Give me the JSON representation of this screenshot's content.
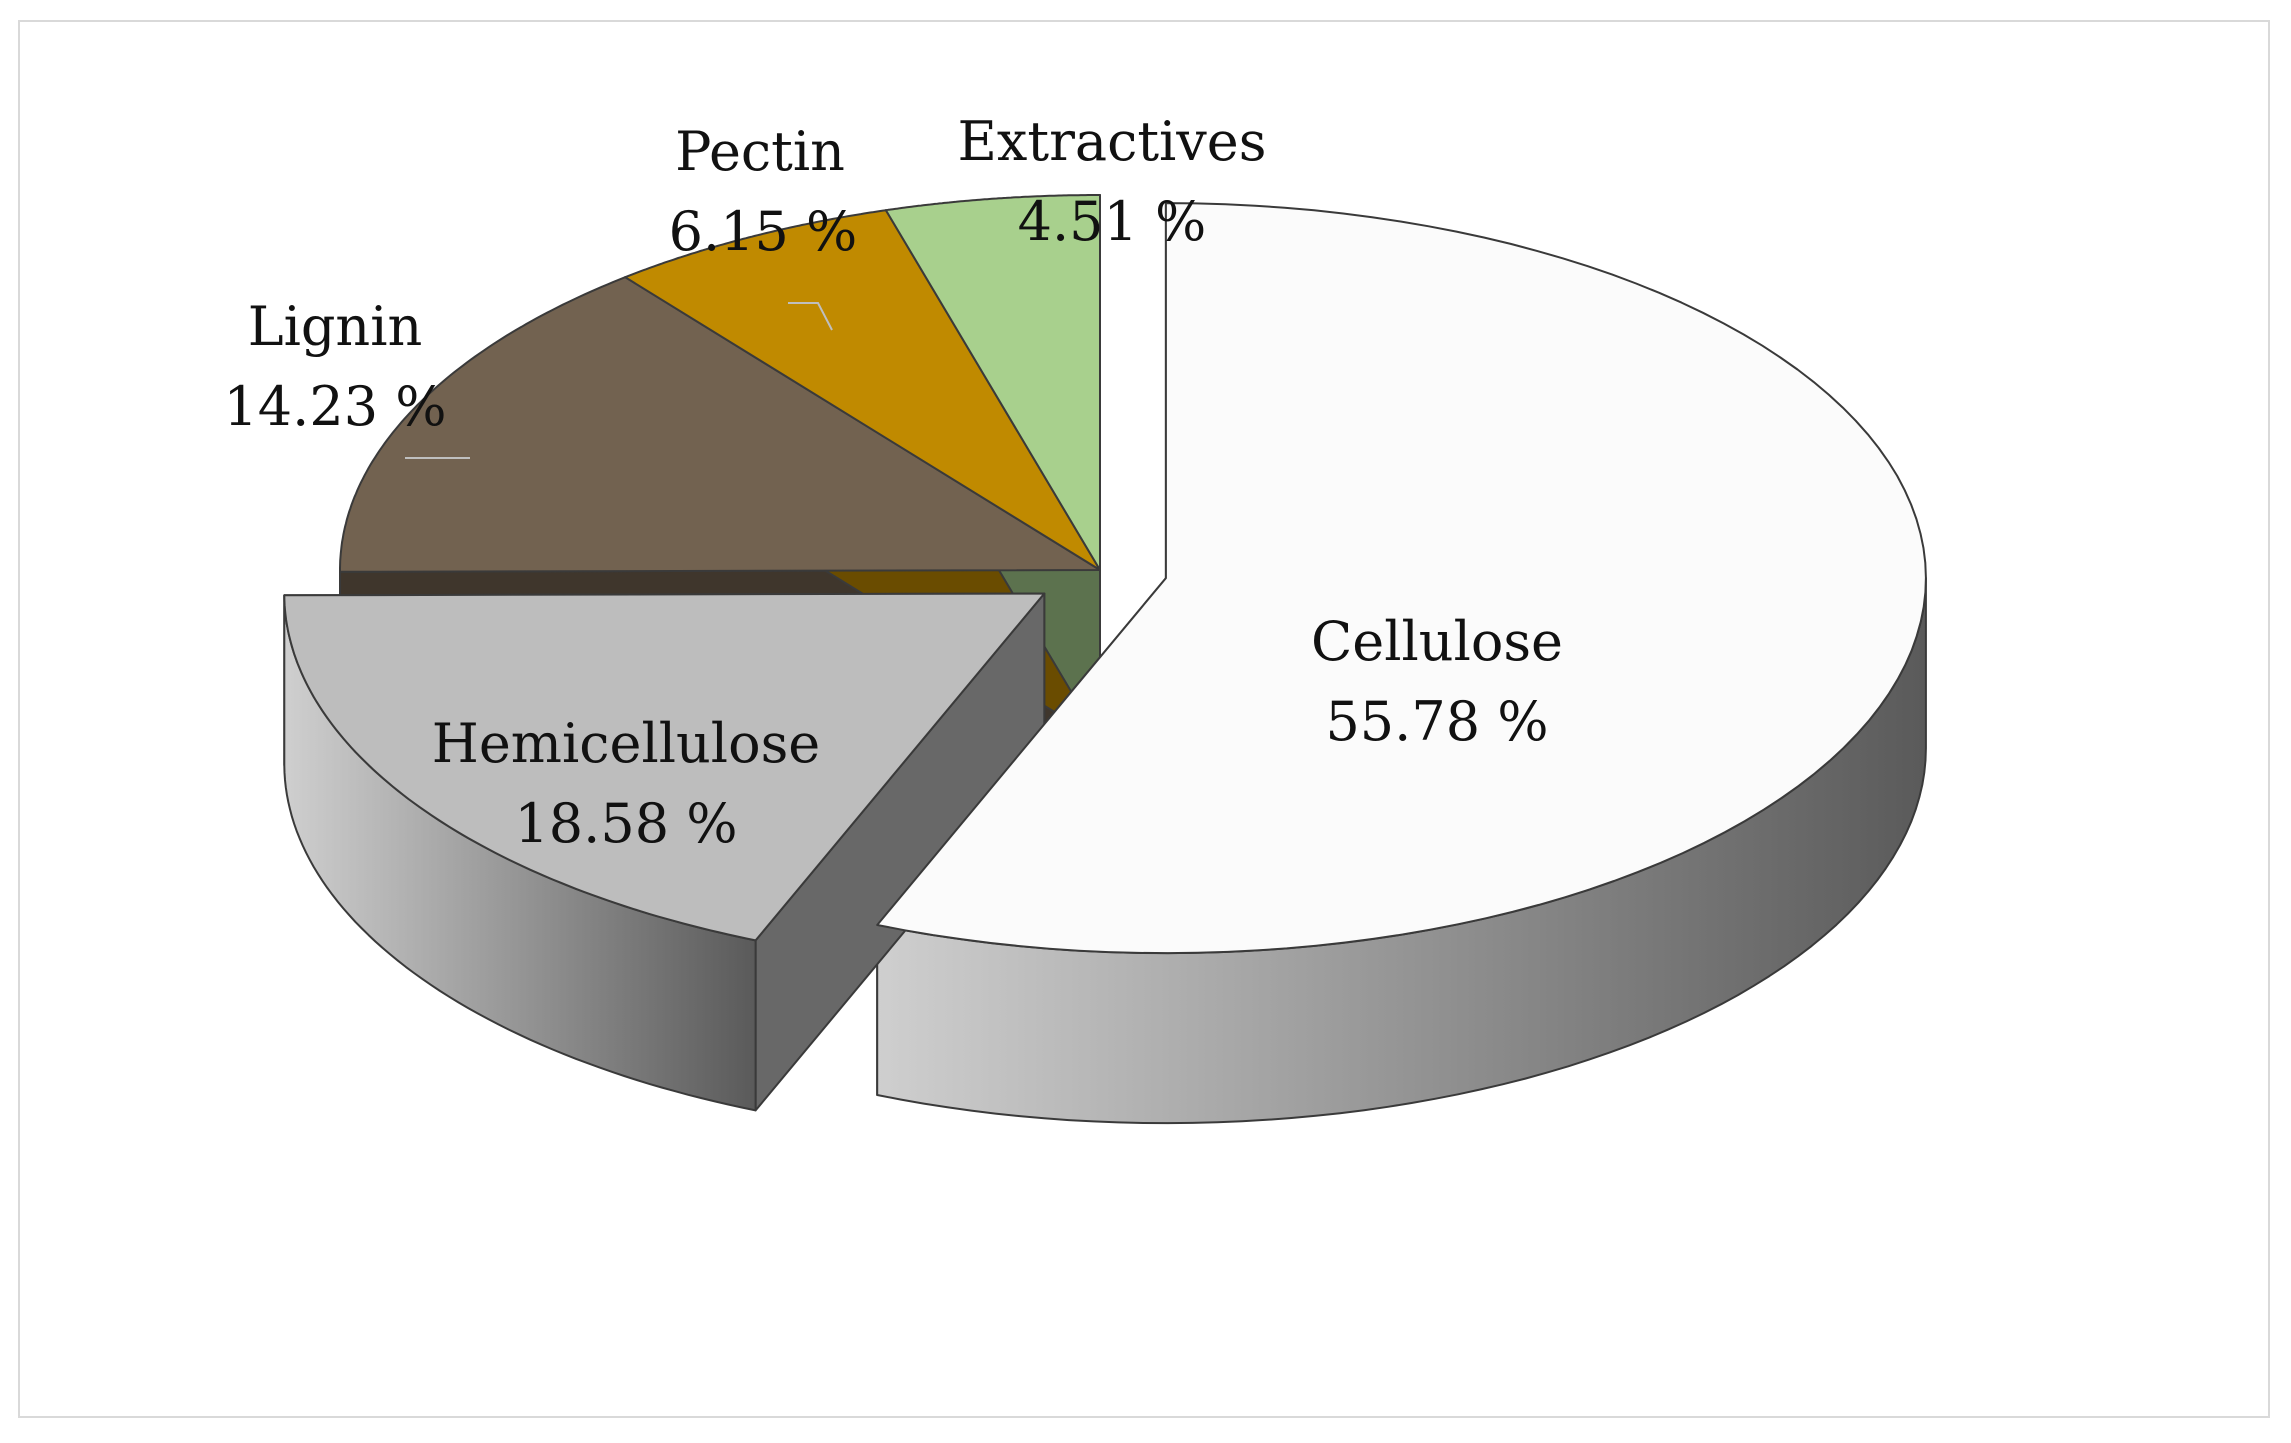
{
  "chart_data": {
    "type": "pie",
    "title": "",
    "legend": "none",
    "slices": [
      {
        "label": "Cellulose",
        "value": 55.78,
        "value_label": "55.78 %",
        "color": "#fbfbfb",
        "exploded": true
      },
      {
        "label": "Hemicellulose",
        "value": 18.58,
        "value_label": "18.58 %",
        "color": "#bdbdbd",
        "exploded": true
      },
      {
        "label": "Lignin",
        "value": 14.23,
        "value_label": "14.23 %",
        "color": "#726250",
        "exploded": false
      },
      {
        "label": "Pectin",
        "value": 6.15,
        "value_label": "6.15 %",
        "color": "#c08a00",
        "exploded": false
      },
      {
        "label": "Extractives",
        "value": 4.51,
        "value_label": "4.51 %",
        "color": "#a8d08d",
        "exploded": false
      }
    ]
  }
}
